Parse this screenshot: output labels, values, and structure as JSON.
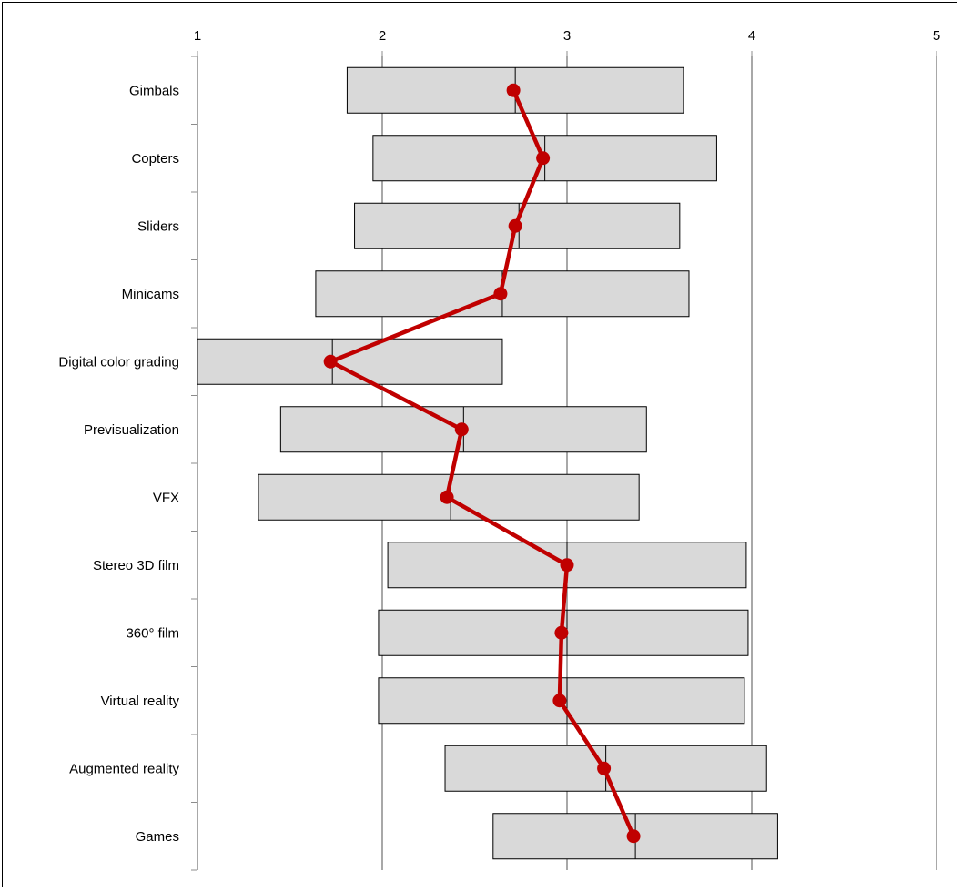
{
  "chart_data": {
    "type": "bar",
    "orientation": "horizontal",
    "title": "",
    "xlabel": "",
    "ylabel": "",
    "xlim": [
      1,
      5
    ],
    "x_ticks": [
      "1",
      "2",
      "3",
      "4",
      "5"
    ],
    "x_axis_position": "top",
    "grid": true,
    "legend": "none",
    "categories": [
      "Gimbals",
      "Copters",
      "Sliders",
      "Minicams",
      "Digital color grading",
      "Previsualization",
      "VFX",
      "Stereo 3D film",
      "360° film",
      "Virtual reality",
      "Augmented reality",
      "Games"
    ],
    "series": [
      {
        "kind": "range-box",
        "low": [
          1.81,
          1.95,
          1.85,
          1.64,
          1.0,
          1.45,
          1.33,
          2.03,
          1.98,
          1.98,
          2.34,
          2.6
        ],
        "median": [
          2.72,
          2.88,
          2.74,
          2.65,
          1.73,
          2.44,
          2.37,
          3.0,
          3.0,
          3.0,
          3.21,
          3.37
        ],
        "high": [
          3.63,
          3.81,
          3.61,
          3.66,
          2.65,
          3.43,
          3.39,
          3.97,
          3.98,
          3.96,
          4.08,
          4.14
        ]
      },
      {
        "kind": "line",
        "values": [
          2.71,
          2.87,
          2.72,
          2.64,
          1.72,
          2.43,
          2.35,
          3.0,
          2.97,
          2.96,
          3.2,
          3.36
        ]
      }
    ],
    "colors": {
      "box_fill": "#d9d9d9",
      "box_stroke": "#000000",
      "line": "#c00000",
      "grid": "#8c8c8c"
    }
  }
}
